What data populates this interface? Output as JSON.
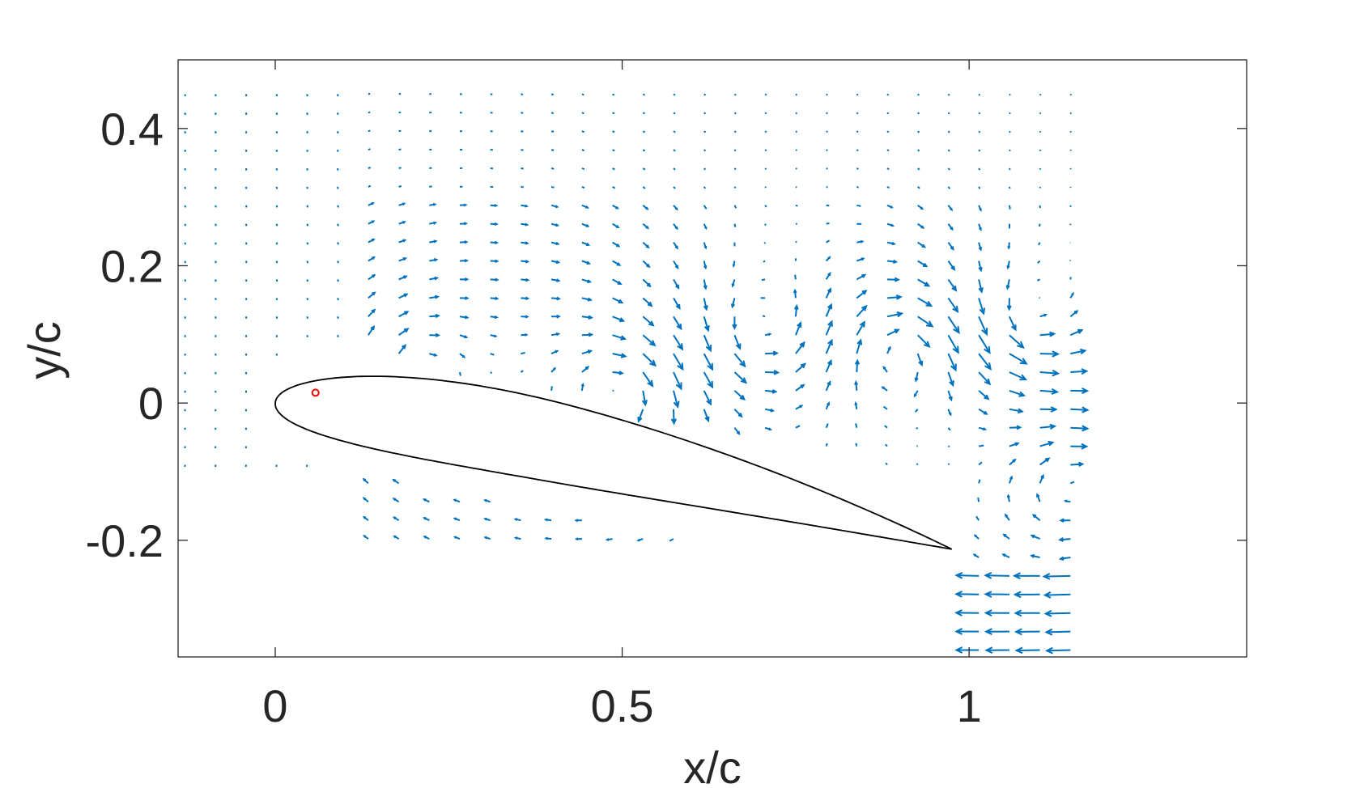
{
  "chart_data": {
    "type": "quiver",
    "xlabel": "x/c",
    "ylabel": "y/c",
    "xlim": [
      -0.14,
      1.4
    ],
    "ylim": [
      -0.37,
      0.5
    ],
    "xticks": [
      0,
      0.5,
      1
    ],
    "xtick_labels": [
      "0",
      "0.5",
      "1"
    ],
    "yticks": [
      0.4,
      0.2,
      0,
      -0.2
    ],
    "ytick_labels": [
      "0.4",
      "0.2",
      "0",
      "-0.2"
    ],
    "grid": false,
    "box": true,
    "colors": {
      "vectors": "#0072BD",
      "airfoil": "#000000",
      "marker": "#ff0000",
      "axes": "#262626"
    },
    "airfoil": {
      "leading_edge": [
        0.0,
        0.0
      ],
      "trailing_edge": [
        0.975,
        -0.213
      ],
      "max_thickness_ratio": 0.12,
      "camber_ratio": 0.03
    },
    "marker_point": [
      0.058,
      0.015
    ],
    "vector_field": {
      "description_grid_x": "approx. 0.044 spacing from -0.13 to 1.18",
      "description_grid_y": "approx. 0.027 spacing from -0.36 to 0.47"
    }
  }
}
